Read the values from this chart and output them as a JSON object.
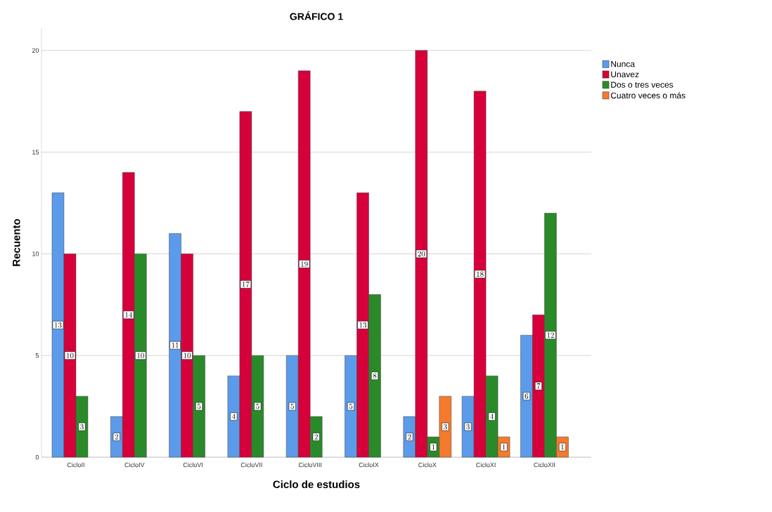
{
  "chart_data": {
    "type": "bar",
    "title": "GRÁFICO 1",
    "xlabel": "Ciclo de estudios",
    "ylabel": "Recuento",
    "categories": [
      "CicloII",
      "CicloIV",
      "CicloVI",
      "CicloVII",
      "CicloVIII",
      "CicloIX",
      "CicloX",
      "CicloXI",
      "CicloXII"
    ],
    "series": [
      {
        "name": "Nunca",
        "color": "#5b9bea",
        "values": [
          13,
          2,
          11,
          4,
          5,
          5,
          2,
          3,
          6
        ]
      },
      {
        "name": "Unavez",
        "color": "#d6003a",
        "values": [
          10,
          14,
          10,
          17,
          19,
          13,
          20,
          18,
          7
        ]
      },
      {
        "name": "Dos o tres veces",
        "color": "#2a8a2a",
        "values": [
          3,
          10,
          5,
          5,
          2,
          8,
          1,
          4,
          12
        ]
      },
      {
        "name": "Cuatro veces o más",
        "color": "#f47a2e",
        "values": [
          null,
          null,
          null,
          null,
          null,
          null,
          3,
          1,
          1
        ]
      }
    ],
    "ylim": [
      0,
      21.1
    ],
    "yticks": [
      0,
      5,
      10,
      15,
      20
    ],
    "grid": "y",
    "legend": "right",
    "data_labels": true
  }
}
